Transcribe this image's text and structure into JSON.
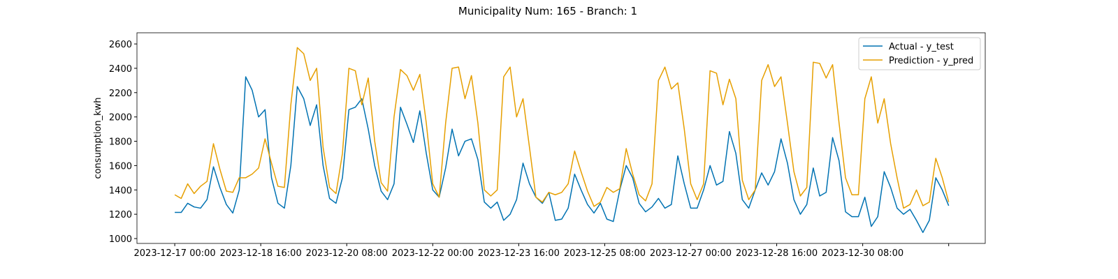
{
  "chart_data": {
    "type": "line",
    "title": "Municipality Num: 165 - Branch: 1",
    "y_label": "consumption_kwh",
    "x": [
      "2023-12-17 00:00",
      "2023-12-17 03:00",
      "2023-12-17 06:00",
      "2023-12-17 09:00",
      "2023-12-17 12:00",
      "2023-12-17 15:00",
      "2023-12-17 18:00",
      "2023-12-17 21:00",
      "2023-12-18 00:00",
      "2023-12-18 03:00",
      "2023-12-18 06:00",
      "2023-12-18 09:00",
      "2023-12-18 12:00",
      "2023-12-18 15:00",
      "2023-12-18 18:00",
      "2023-12-18 21:00",
      "2023-12-19 00:00",
      "2023-12-19 03:00",
      "2023-12-19 06:00",
      "2023-12-19 09:00",
      "2023-12-19 12:00",
      "2023-12-19 15:00",
      "2023-12-19 18:00",
      "2023-12-19 21:00",
      "2023-12-20 00:00",
      "2023-12-20 03:00",
      "2023-12-20 06:00",
      "2023-12-20 09:00",
      "2023-12-20 12:00",
      "2023-12-20 15:00",
      "2023-12-20 18:00",
      "2023-12-20 21:00",
      "2023-12-21 00:00",
      "2023-12-21 03:00",
      "2023-12-21 06:00",
      "2023-12-21 09:00",
      "2023-12-21 12:00",
      "2023-12-21 15:00",
      "2023-12-21 18:00",
      "2023-12-21 21:00",
      "2023-12-22 00:00",
      "2023-12-22 03:00",
      "2023-12-22 06:00",
      "2023-12-22 09:00",
      "2023-12-22 12:00",
      "2023-12-22 15:00",
      "2023-12-22 18:00",
      "2023-12-22 21:00",
      "2023-12-23 00:00",
      "2023-12-23 03:00",
      "2023-12-23 06:00",
      "2023-12-23 09:00",
      "2023-12-23 12:00",
      "2023-12-23 15:00",
      "2023-12-23 18:00",
      "2023-12-23 21:00",
      "2023-12-24 00:00",
      "2023-12-24 03:00",
      "2023-12-24 06:00",
      "2023-12-24 09:00",
      "2023-12-24 12:00",
      "2023-12-24 15:00",
      "2023-12-24 18:00",
      "2023-12-24 21:00",
      "2023-12-25 00:00",
      "2023-12-25 03:00",
      "2023-12-25 06:00",
      "2023-12-25 09:00",
      "2023-12-25 12:00",
      "2023-12-25 15:00",
      "2023-12-25 18:00",
      "2023-12-25 21:00",
      "2023-12-26 00:00",
      "2023-12-26 03:00",
      "2023-12-26 06:00",
      "2023-12-26 09:00",
      "2023-12-26 12:00",
      "2023-12-26 15:00",
      "2023-12-26 18:00",
      "2023-12-26 21:00",
      "2023-12-27 00:00",
      "2023-12-27 03:00",
      "2023-12-27 06:00",
      "2023-12-27 09:00",
      "2023-12-27 12:00",
      "2023-12-27 15:00",
      "2023-12-27 18:00",
      "2023-12-27 21:00",
      "2023-12-28 00:00",
      "2023-12-28 03:00",
      "2023-12-28 06:00",
      "2023-12-28 09:00",
      "2023-12-28 12:00",
      "2023-12-28 15:00",
      "2023-12-28 18:00",
      "2023-12-28 21:00",
      "2023-12-29 00:00",
      "2023-12-29 03:00",
      "2023-12-29 06:00",
      "2023-12-29 09:00",
      "2023-12-29 12:00",
      "2023-12-29 15:00",
      "2023-12-29 18:00",
      "2023-12-29 21:00",
      "2023-12-30 00:00",
      "2023-12-30 03:00",
      "2023-12-30 06:00",
      "2023-12-30 09:00",
      "2023-12-30 12:00",
      "2023-12-30 15:00",
      "2023-12-30 18:00",
      "2023-12-30 21:00",
      "2023-12-31 00:00",
      "2023-12-31 03:00",
      "2023-12-31 06:00",
      "2023-12-31 09:00",
      "2023-12-31 12:00",
      "2023-12-31 15:00",
      "2023-12-31 18:00",
      "2023-12-31 21:00",
      "2024-01-01 00:00"
    ],
    "series": [
      {
        "name": "Actual - y_test",
        "color": "#0072b2",
        "values": [
          1215,
          1215,
          1290,
          1260,
          1250,
          1320,
          1590,
          1420,
          1280,
          1210,
          1400,
          2330,
          2220,
          2000,
          2060,
          1500,
          1290,
          1250,
          1600,
          2250,
          2150,
          1930,
          2100,
          1600,
          1330,
          1290,
          1500,
          2060,
          2080,
          2150,
          1900,
          1600,
          1390,
          1320,
          1450,
          2080,
          1940,
          1790,
          2050,
          1700,
          1400,
          1340,
          1580,
          1900,
          1680,
          1800,
          1820,
          1650,
          1300,
          1250,
          1300,
          1150,
          1200,
          1320,
          1620,
          1450,
          1340,
          1290,
          1380,
          1150,
          1160,
          1250,
          1530,
          1400,
          1280,
          1210,
          1290,
          1160,
          1140,
          1400,
          1600,
          1500,
          1290,
          1220,
          1260,
          1330,
          1250,
          1280,
          1680,
          1450,
          1250,
          1250,
          1400,
          1600,
          1440,
          1470,
          1880,
          1700,
          1320,
          1250,
          1400,
          1540,
          1440,
          1550,
          1820,
          1620,
          1320,
          1200,
          1280,
          1580,
          1350,
          1380,
          1830,
          1640,
          1220,
          1180,
          1180,
          1340,
          1100,
          1180,
          1550,
          1420,
          1250,
          1200,
          1240,
          1150,
          1050,
          1150,
          1500,
          1400,
          1270
        ]
      },
      {
        "name": "Prediction - y_pred",
        "color": "#e69f00",
        "values": [
          1360,
          1330,
          1450,
          1370,
          1430,
          1470,
          1780,
          1570,
          1390,
          1380,
          1500,
          1500,
          1530,
          1580,
          1820,
          1620,
          1430,
          1420,
          2100,
          2570,
          2520,
          2300,
          2400,
          1750,
          1420,
          1370,
          1700,
          2400,
          2380,
          2100,
          2320,
          1800,
          1460,
          1390,
          2000,
          2390,
          2340,
          2220,
          2350,
          1950,
          1450,
          1340,
          1950,
          2400,
          2410,
          2150,
          2340,
          1950,
          1400,
          1350,
          1400,
          2330,
          2410,
          2000,
          2150,
          1750,
          1340,
          1300,
          1380,
          1360,
          1380,
          1450,
          1720,
          1550,
          1390,
          1265,
          1300,
          1420,
          1380,
          1410,
          1740,
          1530,
          1360,
          1310,
          1450,
          2300,
          2410,
          2230,
          2280,
          1900,
          1450,
          1320,
          1450,
          2380,
          2360,
          2100,
          2310,
          2150,
          1480,
          1320,
          1400,
          2300,
          2430,
          2250,
          2330,
          1950,
          1550,
          1350,
          1420,
          2450,
          2440,
          2320,
          2430,
          1950,
          1500,
          1360,
          1360,
          2150,
          2330,
          1950,
          2150,
          1780,
          1500,
          1250,
          1280,
          1400,
          1270,
          1300,
          1660,
          1500,
          1300
        ]
      }
    ],
    "xlim": [
      "2023-12-16 06:25",
      "2024-01-01 17:00"
    ],
    "xticks": [
      {
        "value": "2023-12-17 00:00",
        "label": "2023-12-17 00:00"
      },
      {
        "value": "2023-12-18 16:00",
        "label": "2023-12-18 16:00"
      },
      {
        "value": "2023-12-20 08:00",
        "label": "2023-12-20 08:00"
      },
      {
        "value": "2023-12-22 00:00",
        "label": "2023-12-22 00:00"
      },
      {
        "value": "2023-12-23 16:00",
        "label": "2023-12-23 16:00"
      },
      {
        "value": "2023-12-25 08:00",
        "label": "2023-12-25 08:00"
      },
      {
        "value": "2023-12-27 00:00",
        "label": "2023-12-27 00:00"
      },
      {
        "value": "2023-12-28 16:00",
        "label": "2023-12-28 16:00"
      },
      {
        "value": "2023-12-30 08:00",
        "label": "2023-12-30 08:00"
      },
      {
        "value": "2024-01-01 00:00",
        "label": null
      }
    ],
    "ylim": [
      960,
      2692
    ],
    "yticks": [
      1000,
      1200,
      1400,
      1600,
      1800,
      2000,
      2200,
      2400,
      2600
    ],
    "grid": false,
    "legend": "upper right"
  }
}
